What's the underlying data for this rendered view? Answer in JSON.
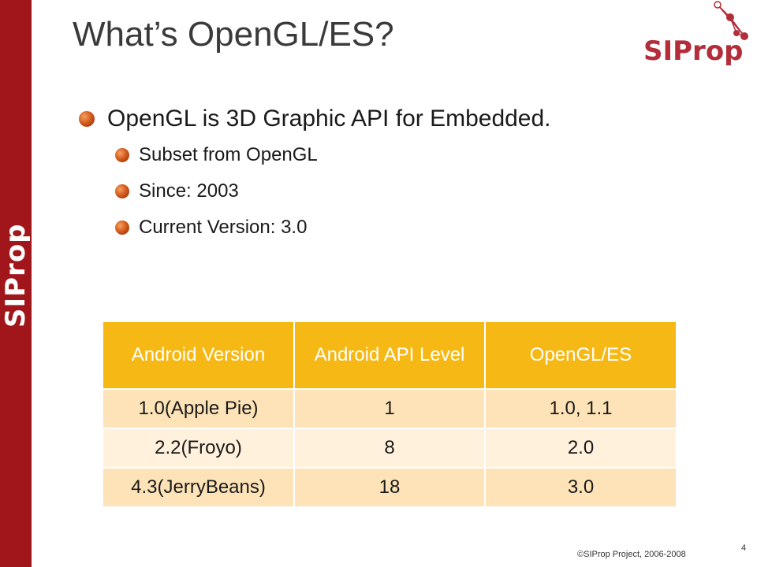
{
  "slide": {
    "title": "What’s OpenGL/ES?",
    "sidebar_logo_text": "SIProp",
    "corner_logo_text": "SIProp"
  },
  "bullets": [
    {
      "level": 1,
      "text": "OpenGL is 3D Graphic API for Embedded."
    },
    {
      "level": 2,
      "text": "Subset from OpenGL"
    },
    {
      "level": 2,
      "text": "Since: 2003"
    },
    {
      "level": 2,
      "text": "Current Version: 3.0"
    }
  ],
  "table": {
    "headers": [
      "Android Version",
      "Android API Level",
      "OpenGL/ES"
    ],
    "rows": [
      [
        "1.0(Apple Pie)",
        "1",
        "1.0, 1.1"
      ],
      [
        "2.2(Froyo)",
        "8",
        "2.0"
      ],
      [
        "4.3(JerryBeans)",
        "18",
        "3.0"
      ]
    ]
  },
  "footer": {
    "copyright": "©SIProp Project, 2006-2008",
    "page_number": "4"
  },
  "colors": {
    "sidebar": "#a0161b",
    "table_header": "#f6b815",
    "table_row_a": "#fde3b7",
    "table_row_b": "#fff1dc",
    "bullet": "#d0561c"
  }
}
